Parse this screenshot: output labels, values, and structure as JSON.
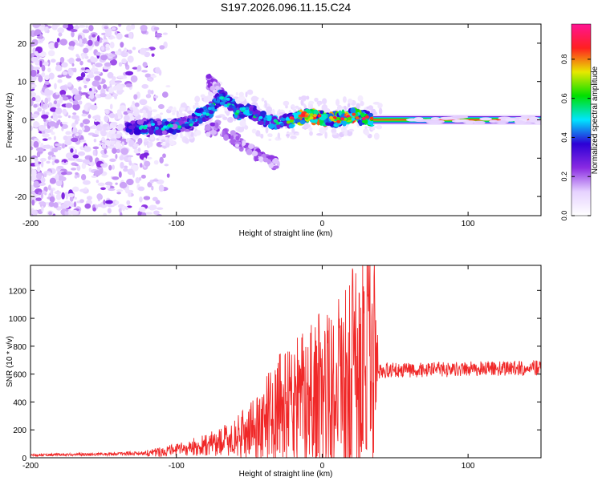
{
  "title": "S197.2026.096.11.15.C24",
  "chart_data": [
    {
      "type": "heatmap",
      "name": "spectrogram",
      "xlabel": "Height of straight line (km)",
      "ylabel": "Frequency (Hz)",
      "xlim": [
        -200,
        150
      ],
      "ylim": [
        -25,
        25
      ],
      "xticks": [
        -200,
        -100,
        0,
        100
      ],
      "yticks": [
        -20,
        -10,
        0,
        10,
        20
      ],
      "tone_path": [
        [
          -130,
          -2
        ],
        [
          -120,
          -1.5
        ],
        [
          -110,
          -2
        ],
        [
          -100,
          -1.5
        ],
        [
          -90,
          -1
        ],
        [
          -85,
          1
        ],
        [
          -78,
          2
        ],
        [
          -70,
          6
        ],
        [
          -65,
          5
        ],
        [
          -58,
          2
        ],
        [
          -50,
          3
        ],
        [
          -45,
          1
        ],
        [
          -38,
          0
        ],
        [
          -30,
          -1
        ],
        [
          -20,
          0
        ],
        [
          -12,
          1
        ],
        [
          0,
          0.5
        ],
        [
          10,
          0
        ],
        [
          20,
          1
        ],
        [
          30,
          0.5
        ],
        [
          35,
          0
        ],
        [
          150,
          0
        ]
      ],
      "side_branches": [
        [
          [
            -80,
            -3
          ],
          [
            -70,
            -2
          ],
          [
            -60,
            -5
          ],
          [
            -50,
            -8
          ],
          [
            -40,
            -10
          ],
          [
            -30,
            -12
          ]
        ],
        [
          [
            -78,
            10
          ],
          [
            -72,
            8
          ],
          [
            -68,
            6
          ]
        ]
      ],
      "noise_region_x": [
        -200,
        -150
      ],
      "narrow_tone_x": [
        35,
        150
      ],
      "colorbar": {
        "label": "Normalized spectral amplitude",
        "ticks": [
          "0.0",
          "0.2",
          "0.4",
          "0.6",
          "0.8"
        ],
        "tick_values": [
          0.0,
          0.2,
          0.4,
          0.6,
          0.8
        ],
        "range": [
          0,
          0.98
        ],
        "colors": [
          "#ffffff",
          "#e6d2ff",
          "#8a2be2",
          "#2c00d6",
          "#00e5ff",
          "#00e000",
          "#e8e800",
          "#ff2020",
          "#ff1493"
        ]
      }
    },
    {
      "type": "line",
      "name": "snr",
      "xlabel": "Height of straight line (km)",
      "ylabel": "SNR (10 * v/v)",
      "xlim": [
        -200,
        150
      ],
      "ylim": [
        0,
        1380
      ],
      "xticks": [
        -200,
        -100,
        0,
        100
      ],
      "yticks": [
        0,
        200,
        400,
        600,
        800,
        1000,
        1200
      ],
      "color": "#f02828",
      "envelope": [
        [
          -200,
          20
        ],
        [
          -150,
          25
        ],
        [
          -120,
          35
        ],
        [
          -100,
          55
        ],
        [
          -80,
          90
        ],
        [
          -60,
          140
        ],
        [
          -45,
          220
        ],
        [
          -35,
          320
        ],
        [
          -25,
          380
        ],
        [
          -15,
          420
        ],
        [
          -5,
          480
        ],
        [
          5,
          500
        ],
        [
          12,
          520
        ],
        [
          18,
          560
        ],
        [
          22,
          620
        ],
        [
          27,
          680
        ],
        [
          33,
          620
        ],
        [
          38,
          610
        ],
        [
          45,
          630
        ],
        [
          60,
          630
        ],
        [
          80,
          630
        ],
        [
          100,
          635
        ],
        [
          120,
          640
        ],
        [
          150,
          645
        ]
      ],
      "peaks": [
        [
          -63,
          170
        ],
        [
          -45,
          260
        ],
        [
          -36,
          420
        ],
        [
          -22,
          580
        ],
        [
          -18,
          530
        ],
        [
          -10,
          450
        ],
        [
          -5,
          720
        ],
        [
          12,
          800
        ],
        [
          18,
          900
        ],
        [
          22,
          1050
        ],
        [
          26,
          960
        ],
        [
          30,
          1240
        ],
        [
          32,
          1390
        ],
        [
          34,
          1010
        ],
        [
          38,
          880
        ]
      ]
    }
  ]
}
